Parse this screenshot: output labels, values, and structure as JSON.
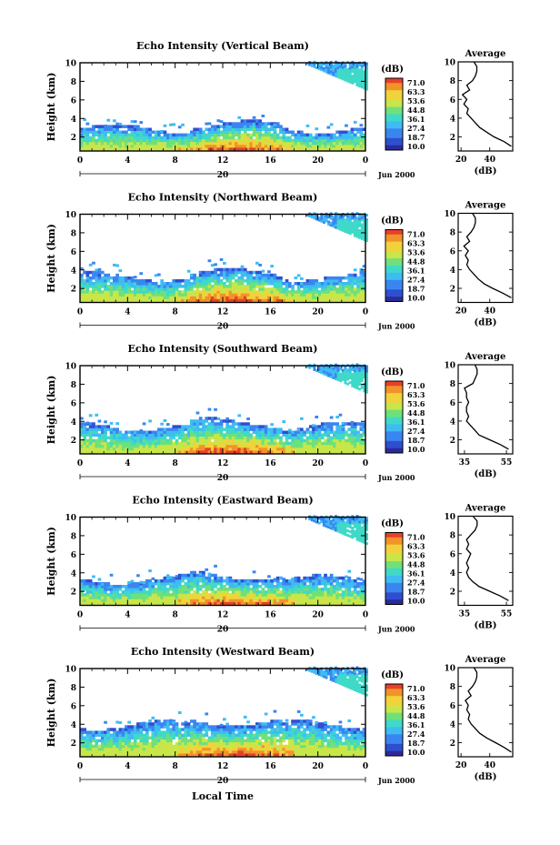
{
  "common": {
    "ylabel": "Height (km)",
    "xlabel": "Local Time",
    "day_label": "20",
    "date_label": "Jun 2000",
    "colorbar_title": "(dB)",
    "colorbar_ticks": [
      "71.0",
      "63.3",
      "53.6",
      "44.8",
      "36.1",
      "27.4",
      "18.7",
      "10.0"
    ],
    "avg_title": "Average",
    "avg_xlabel": "(dB)",
    "colors": [
      "#2a2a9a",
      "#2f4fd0",
      "#3a86f0",
      "#3fbcf2",
      "#3fd9c8",
      "#6fe07a",
      "#c8e64a",
      "#f2d23a",
      "#f2932a",
      "#e8402a"
    ]
  },
  "chart_data": [
    {
      "type": "heatmap",
      "title": "Echo Intensity (Vertical Beam)",
      "ylabel": "Height (km)",
      "x_ticks": [
        "0",
        "4",
        "8",
        "12",
        "16",
        "20",
        "0"
      ],
      "xlim": [
        0,
        24
      ],
      "y_ticks": [
        "2",
        "4",
        "6",
        "8",
        "10"
      ],
      "ylim": [
        0.5,
        10
      ],
      "colorbar": {
        "title": "(dB)",
        "range": [
          10.0,
          71.0
        ]
      },
      "layers": {
        "top_km": 3.0,
        "cloud_start_hour": 19,
        "max_intensity_hour": 13
      },
      "average_profile": {
        "title": "Average",
        "xlabel": "(dB)",
        "x_ticks": [
          "20",
          "40"
        ],
        "xlim": [
          18,
          56
        ],
        "y_ticks": [
          "2",
          "4",
          "6",
          "8",
          "10"
        ],
        "height_km": [
          1.0,
          1.5,
          2.0,
          2.5,
          3.0,
          3.5,
          4.0,
          4.5,
          5.0,
          5.5,
          6.0,
          6.5,
          7.0,
          7.5,
          8.0,
          8.5,
          9.0,
          9.5,
          10.0
        ],
        "db": [
          55,
          50,
          43,
          38,
          33,
          30,
          27,
          24,
          25,
          22,
          24,
          21,
          26,
          24,
          28,
          30,
          31,
          31,
          29
        ]
      }
    },
    {
      "type": "heatmap",
      "title": "Echo Intensity (Northward Beam)",
      "ylabel": "Height (km)",
      "x_ticks": [
        "0",
        "4",
        "8",
        "12",
        "16",
        "20",
        "0"
      ],
      "xlim": [
        0,
        24
      ],
      "y_ticks": [
        "2",
        "4",
        "6",
        "8",
        "10"
      ],
      "ylim": [
        0.5,
        10
      ],
      "colorbar": {
        "title": "(dB)",
        "range": [
          10.0,
          71.0
        ]
      },
      "layers": {
        "top_km": 3.4,
        "cloud_start_hour": 19,
        "max_intensity_hour": 13
      },
      "average_profile": {
        "title": "Average",
        "xlabel": "(dB)",
        "x_ticks": [
          "20",
          "40"
        ],
        "xlim": [
          18,
          56
        ],
        "y_ticks": [
          "2",
          "4",
          "6",
          "8",
          "10"
        ],
        "height_km": [
          1.0,
          1.5,
          2.0,
          2.5,
          3.0,
          3.5,
          4.0,
          4.5,
          5.0,
          5.5,
          6.0,
          6.5,
          7.0,
          7.5,
          8.0,
          8.5,
          9.0,
          9.5,
          10.0
        ],
        "db": [
          55,
          49,
          42,
          36,
          32,
          29,
          26,
          24,
          25,
          23,
          25,
          22,
          26,
          24,
          27,
          29,
          30,
          30,
          28
        ]
      }
    },
    {
      "type": "heatmap",
      "title": "Echo Intensity (Southward Beam)",
      "ylabel": "Height (km)",
      "x_ticks": [
        "0",
        "4",
        "8",
        "12",
        "16",
        "20",
        "0"
      ],
      "xlim": [
        0,
        24
      ],
      "y_ticks": [
        "2",
        "4",
        "6",
        "8",
        "10"
      ],
      "ylim": [
        0.5,
        10
      ],
      "colorbar": {
        "title": "(dB)",
        "range": [
          10.0,
          71.0
        ]
      },
      "layers": {
        "top_km": 3.6,
        "cloud_start_hour": 19,
        "max_intensity_hour": 13
      },
      "average_profile": {
        "title": "Average",
        "xlabel": "(dB)",
        "x_ticks": [
          "35",
          "55"
        ],
        "xlim": [
          32,
          58
        ],
        "y_ticks": [
          "2",
          "4",
          "6",
          "8",
          "10"
        ],
        "height_km": [
          1.0,
          1.5,
          2.0,
          2.5,
          3.0,
          3.5,
          4.0,
          4.5,
          5.0,
          5.5,
          6.0,
          6.5,
          7.0,
          7.5,
          8.0,
          8.5,
          9.0,
          9.5,
          10.0
        ],
        "db": [
          56,
          52,
          47,
          42,
          40,
          38,
          36,
          37,
          36,
          36,
          37,
          36,
          36,
          35,
          39,
          40,
          41,
          41,
          40
        ]
      }
    },
    {
      "type": "heatmap",
      "title": "Echo Intensity (Eastward Beam)",
      "ylabel": "Height (km)",
      "x_ticks": [
        "0",
        "4",
        "8",
        "12",
        "16",
        "20",
        "0"
      ],
      "xlim": [
        0,
        24
      ],
      "y_ticks": [
        "2",
        "4",
        "6",
        "8",
        "10"
      ],
      "ylim": [
        0.5,
        10
      ],
      "colorbar": {
        "title": "(dB)",
        "range": [
          10.0,
          71.0
        ]
      },
      "layers": {
        "top_km": 3.4,
        "cloud_start_hour": 19,
        "max_intensity_hour": 13
      },
      "average_profile": {
        "title": "Average",
        "xlabel": "(dB)",
        "x_ticks": [
          "35",
          "55"
        ],
        "xlim": [
          32,
          58
        ],
        "y_ticks": [
          "2",
          "4",
          "6",
          "8",
          "10"
        ],
        "height_km": [
          1.0,
          1.5,
          2.0,
          2.5,
          3.0,
          3.5,
          4.0,
          4.5,
          5.0,
          5.5,
          6.0,
          6.5,
          7.0,
          7.5,
          8.0,
          8.5,
          9.0,
          9.5,
          10.0
        ],
        "db": [
          56,
          52,
          47,
          42,
          39,
          37,
          36,
          37,
          36,
          37,
          38,
          36,
          37,
          36,
          38,
          40,
          41,
          41,
          39
        ]
      }
    },
    {
      "type": "heatmap",
      "title": "Echo Intensity (Westward Beam)",
      "ylabel": "Height (km)",
      "x_ticks": [
        "0",
        "4",
        "8",
        "12",
        "16",
        "20",
        "0"
      ],
      "xlim": [
        0,
        24
      ],
      "y_ticks": [
        "2",
        "4",
        "6",
        "8",
        "10"
      ],
      "ylim": [
        0.5,
        10
      ],
      "colorbar": {
        "title": "(dB)",
        "range": [
          10.0,
          71.0
        ]
      },
      "layers": {
        "top_km": 4.0,
        "cloud_start_hour": 19,
        "max_intensity_hour": 13
      },
      "average_profile": {
        "title": "Average",
        "xlabel": "(dB)",
        "x_ticks": [
          "20",
          "40"
        ],
        "xlim": [
          18,
          56
        ],
        "y_ticks": [
          "2",
          "4",
          "6",
          "8",
          "10"
        ],
        "height_km": [
          1.0,
          1.5,
          2.0,
          2.5,
          3.0,
          3.5,
          4.0,
          4.5,
          5.0,
          5.5,
          6.0,
          6.5,
          7.0,
          7.5,
          8.0,
          8.5,
          9.0,
          9.5,
          10.0
        ],
        "db": [
          55,
          50,
          44,
          38,
          33,
          30,
          27,
          25,
          26,
          24,
          25,
          23,
          27,
          25,
          28,
          30,
          31,
          31,
          29
        ]
      }
    }
  ]
}
